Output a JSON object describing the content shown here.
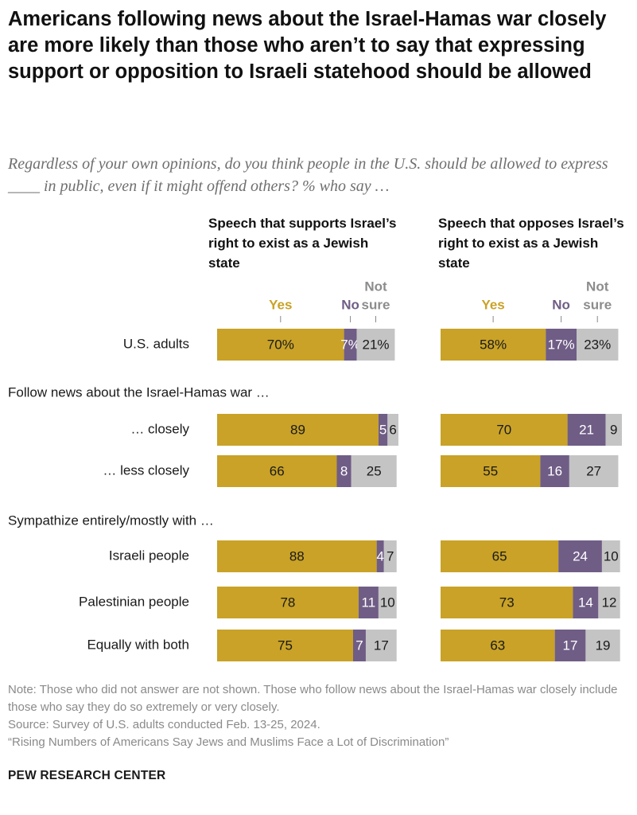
{
  "title": "Americans following news about the Israel-Hamas war closely are more likely than those who aren’t to say that expressing support or opposition to Israeli statehood should be allowed",
  "subtitle": "Regardless of your own opinions, do you think people in the U.S. should be allowed to express ____ in public, even if it might offend others? % who say …",
  "notes": {
    "note": "Note: Those who did not answer are not shown. Those who follow news about the Israel-Hamas war closely include those who say they do so extremely or very closely.",
    "source": "Source: Survey of U.S. adults conducted Feb. 13-25, 2024.",
    "report": "“Rising Numbers of Americans Say Jews and Muslims Face a Lot of Discrimination”"
  },
  "brand": "PEW RESEARCH CENTER",
  "colors": {
    "yes": "#c9a227",
    "no": "#6f5d86",
    "not_sure": "#c4c4c4",
    "header_yes": "#c9a227",
    "header_no": "#6f5d86",
    "header_not_sure": "#8c8c8c"
  },
  "chart_data": {
    "type": "bar",
    "orientation": "horizontal",
    "stacked": true,
    "series_names": [
      "Yes",
      "No",
      "Not sure"
    ],
    "panels": [
      {
        "title": "Speech that supports Israel’s right to exist as a Jewish state"
      },
      {
        "title": "Speech that opposes Israel’s right to exist as a Jewish state"
      }
    ],
    "sections": [
      {
        "label": "",
        "rows": [
          {
            "label": "U.S. adults",
            "display_percent": true,
            "values": [
              [
                70,
                7,
                21
              ],
              [
                58,
                17,
                23
              ]
            ]
          }
        ]
      },
      {
        "label": "Follow news about the Israel-Hamas war …",
        "rows": [
          {
            "label": "… closely",
            "values": [
              [
                89,
                5,
                6
              ],
              [
                70,
                21,
                9
              ]
            ]
          },
          {
            "label": "… less closely",
            "values": [
              [
                66,
                8,
                25
              ],
              [
                55,
                16,
                27
              ]
            ]
          }
        ]
      },
      {
        "label": "Sympathize entirely/mostly with …",
        "rows": [
          {
            "label": "Israeli people",
            "values": [
              [
                88,
                4,
                7
              ],
              [
                65,
                24,
                10
              ]
            ]
          },
          {
            "label": "Palestinian people",
            "values": [
              [
                78,
                11,
                10
              ],
              [
                73,
                14,
                12
              ]
            ]
          },
          {
            "label": "Equally with both",
            "values": [
              [
                75,
                7,
                17
              ],
              [
                63,
                17,
                19
              ]
            ]
          }
        ]
      }
    ]
  }
}
